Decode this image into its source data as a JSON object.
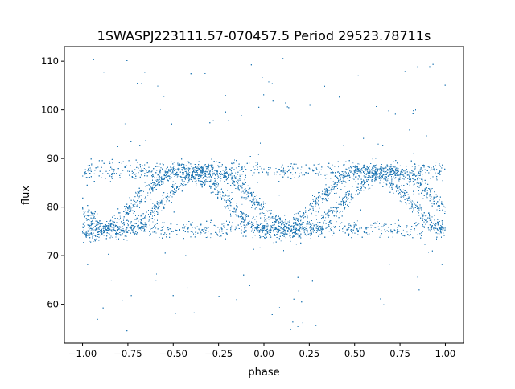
{
  "chart_data": {
    "type": "scatter",
    "title": "1SWASPJ223111.57-070457.5 Period 29523.78711s",
    "xlabel": "phase",
    "ylabel": "flux",
    "xlim": [
      -1.1,
      1.1
    ],
    "ylim": [
      52,
      113
    ],
    "xticks": [
      -1.0,
      -0.75,
      -0.5,
      -0.25,
      0.0,
      0.25,
      0.5,
      0.75,
      1.0
    ],
    "xtick_labels": [
      "−1.00",
      "−0.75",
      "−0.50",
      "−0.25",
      "0.00",
      "0.25",
      "0.50",
      "0.75",
      "1.00"
    ],
    "yticks": [
      60,
      70,
      80,
      90,
      100,
      110
    ],
    "ytick_labels": [
      "60",
      "70",
      "80",
      "90",
      "100",
      "110"
    ],
    "grid": false,
    "marker_color": "#1f77b4",
    "series": [
      {
        "x_range": [
          -1.0,
          1.0
        ],
        "period_in_phase": 1.0,
        "baseline_flux": 75.5,
        "band_high_flux": 87.5,
        "band_low_flux": 75.0,
        "peak_flux_range": [
          86,
          91
        ],
        "core_flux_range": [
          72,
          92
        ],
        "outlier_flux_range": [
          54,
          111
        ],
        "approx_point_count": 18000
      }
    ]
  }
}
